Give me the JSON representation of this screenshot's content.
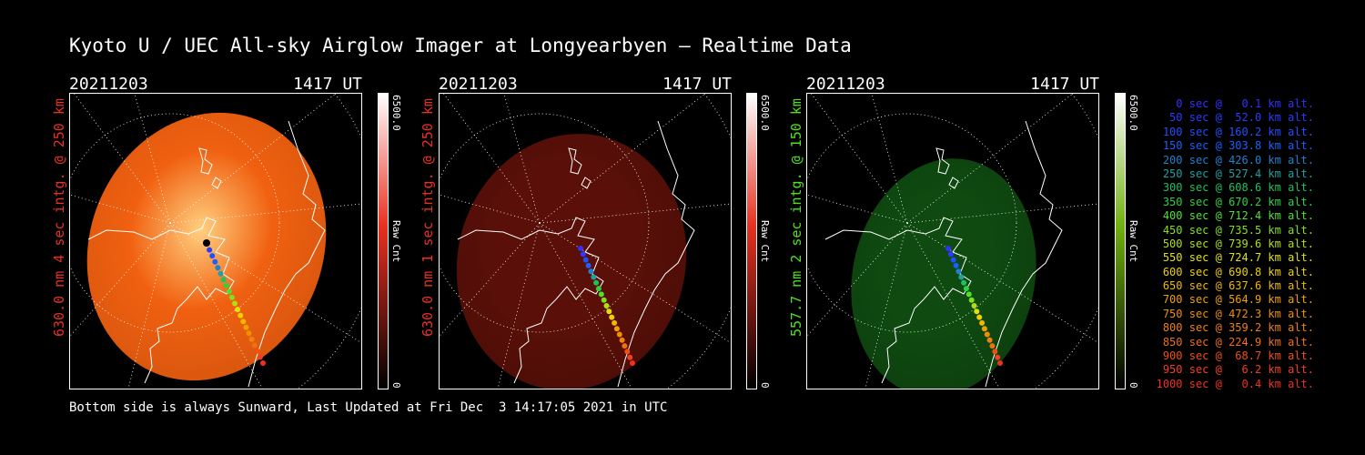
{
  "title": "Kyoto U / UEC All-sky Airglow Imager at Longyearbyen — Realtime Data",
  "footer": "Bottom side is always Sunward, Last Updated at Fri Dec  3 14:17:05 2021 in UTC",
  "panels": [
    {
      "date": "20211203",
      "time": "1417 UT",
      "ylabel": "630.0 nm 4 sec intg. @ 250 km",
      "label_color": "#e83020",
      "cbar_max": "6500.0",
      "cbar_min": "0",
      "cbar_unit": "Raw Cnt",
      "cbar_color": "#e83020",
      "image_color": "#f06010",
      "image_level": 0.75
    },
    {
      "date": "20211203",
      "time": "1417 UT",
      "ylabel": "630.0 nm 1 sec intg. @ 250 km",
      "label_color": "#e83020",
      "cbar_max": "6500.0",
      "cbar_min": "0",
      "cbar_unit": "Raw Cnt",
      "cbar_color": "#e83020",
      "image_color": "#5a1008",
      "image_level": 0.22
    },
    {
      "date": "20211203",
      "time": "1417 UT",
      "ylabel": "557.7 nm 2 sec intg. @ 150 km",
      "label_color": "#50e020",
      "cbar_max": "6500.0",
      "cbar_min": "0",
      "cbar_unit": "Raw Cnt",
      "cbar_color": "#70b010",
      "image_color": "#0f4a10",
      "image_level": 0.2
    }
  ],
  "legend": [
    {
      "text": "0 sec @   0.1 km alt.",
      "color": "#3030ff"
    },
    {
      "text": "50 sec @  52.0 km alt.",
      "color": "#2a3cff"
    },
    {
      "text": "100 sec @ 160.2 km alt.",
      "color": "#2050ff"
    },
    {
      "text": "150 sec @ 303.8 km alt.",
      "color": "#1a60ff"
    },
    {
      "text": "200 sec @ 426.0 km alt.",
      "color": "#2080d0"
    },
    {
      "text": "250 sec @ 527.4 km alt.",
      "color": "#20a0a0"
    },
    {
      "text": "300 sec @ 608.6 km alt.",
      "color": "#20c060"
    },
    {
      "text": "350 sec @ 670.2 km alt.",
      "color": "#30d040"
    },
    {
      "text": "400 sec @ 712.4 km alt.",
      "color": "#50e030"
    },
    {
      "text": "450 sec @ 735.5 km alt.",
      "color": "#80e020"
    },
    {
      "text": "500 sec @ 739.6 km alt.",
      "color": "#b0e010"
    },
    {
      "text": "550 sec @ 724.7 km alt.",
      "color": "#e0e010"
    },
    {
      "text": "600 sec @ 690.8 km alt.",
      "color": "#f0d000"
    },
    {
      "text": "650 sec @ 637.6 km alt.",
      "color": "#f0b800"
    },
    {
      "text": "700 sec @ 564.9 km alt.",
      "color": "#f0a000"
    },
    {
      "text": "750 sec @ 472.3 km alt.",
      "color": "#f09000"
    },
    {
      "text": "800 sec @ 359.2 km alt.",
      "color": "#f08010"
    },
    {
      "text": "850 sec @ 224.9 km alt.",
      "color": "#f07010"
    },
    {
      "text": "900 sec @  68.7 km alt.",
      "color": "#f05010"
    },
    {
      "text": "950 sec @   6.2 km alt.",
      "color": "#f04020"
    },
    {
      "text": "1000 sec @   0.4 km alt.",
      "color": "#f03020"
    }
  ]
}
